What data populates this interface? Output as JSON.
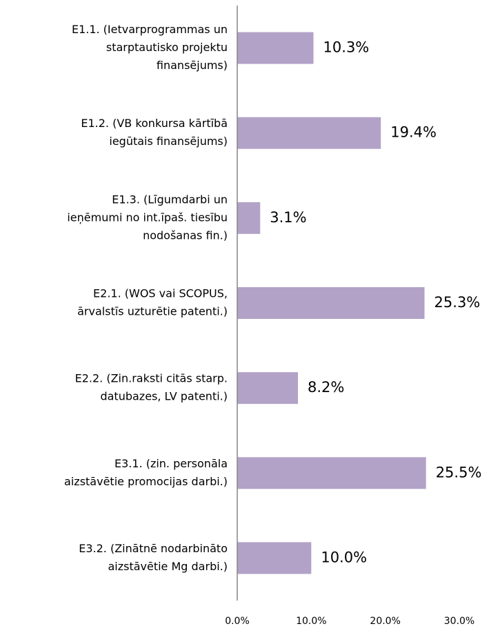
{
  "chart_data": {
    "type": "hbar",
    "categories": [
      [
        "E1.1. (Ietvarprogrammas un",
        "starptautisko projektu",
        "finansējums)"
      ],
      [
        "E1.2. (VB konkursa kārtībā",
        "iegūtais finansējums)"
      ],
      [
        "E1.3. (Līgumdarbi un",
        "ieņēmumi no int.īpaš. tiesību",
        "nodošanas fin.)"
      ],
      [
        "E2.1. (WOS vai SCOPUS,",
        "ārvalstīs uzturētie patenti.)"
      ],
      [
        "E2.2. (Zin.raksti citās starp.",
        "datubazes, LV patenti.)"
      ],
      [
        "E3.1. (zin. personāla",
        "aizstāvētie promocijas darbi.)"
      ],
      [
        "E3.2. (Zinātnē nodarbināto",
        "aizstāvētie Mg darbi.)"
      ]
    ],
    "values": [
      10.3,
      19.4,
      3.1,
      25.3,
      8.2,
      25.5,
      10.0
    ],
    "value_labels": [
      "10.3%",
      "19.4%",
      "3.1%",
      "25.3%",
      "8.2%",
      "25.5%",
      "10.0%"
    ],
    "color": "#b3a2c7",
    "xlim": [
      0,
      30
    ],
    "xticks": [
      {
        "value": 0,
        "label": "0.0%"
      },
      {
        "value": 10,
        "label": "10.0%"
      },
      {
        "value": 20,
        "label": "20.0%"
      },
      {
        "value": 30,
        "label": "30.0%"
      }
    ],
    "grid": false
  }
}
